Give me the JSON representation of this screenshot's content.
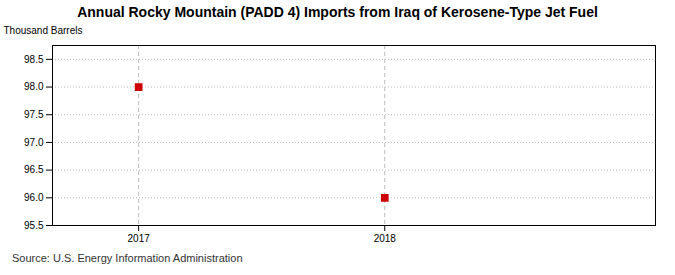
{
  "chart_data": {
    "type": "scatter",
    "title": "Annual Rocky Mountain (PADD 4) Imports from Iraq of Kerosene-Type Jet Fuel",
    "ylabel": "Thousand Barrels",
    "source": "Source: U.S. Energy Information Administration",
    "x": [
      2017,
      2018
    ],
    "values": [
      98.0,
      96.0
    ],
    "color": "#cc0000",
    "marker": "square",
    "xlim": [
      2016.65,
      2019.1
    ],
    "ylim": [
      95.5,
      98.75
    ],
    "xticks": [
      2017,
      2018
    ],
    "yticks": [
      95.5,
      {
        "value": 96.0,
        "label": "96.0"
      },
      96.5,
      {
        "value": 97.0,
        "label": "97.0"
      },
      97.5,
      {
        "value": 98.0,
        "label": "98.0"
      },
      98.5
    ],
    "grid": true
  }
}
